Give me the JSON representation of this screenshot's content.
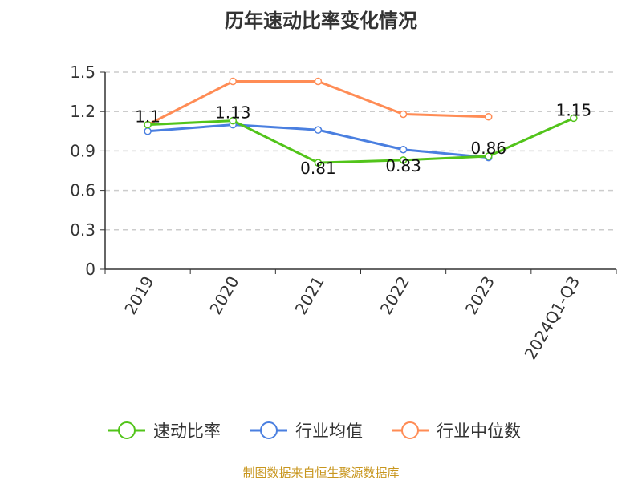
{
  "chart_data": {
    "type": "line",
    "title": "历年速动比率变化情况",
    "categories": [
      "2019",
      "2020",
      "2021",
      "2022",
      "2023",
      "2024Q1-Q3"
    ],
    "ylim": [
      0,
      1.5
    ],
    "yticks": [
      "0",
      "0.3",
      "0.6",
      "0.9",
      "1.2",
      "1.5"
    ],
    "grid": true,
    "legend_position": "bottom",
    "series": [
      {
        "name": "速动比率",
        "color": "#52c41a",
        "values": [
          1.1,
          1.13,
          0.81,
          0.83,
          0.86,
          1.15
        ],
        "labels": [
          "1.1",
          "1.13",
          "0.81",
          "0.83",
          "0.86",
          "1.15"
        ]
      },
      {
        "name": "行业均值",
        "color": "#4a7fe0",
        "values": [
          1.05,
          1.1,
          1.06,
          0.91,
          0.85,
          null
        ]
      },
      {
        "name": "行业中位数",
        "color": "#ff8c55",
        "values": [
          1.1,
          1.43,
          1.43,
          1.18,
          1.16,
          null
        ]
      }
    ]
  },
  "footer": {
    "source": "制图数据来自恒生聚源数据库"
  }
}
